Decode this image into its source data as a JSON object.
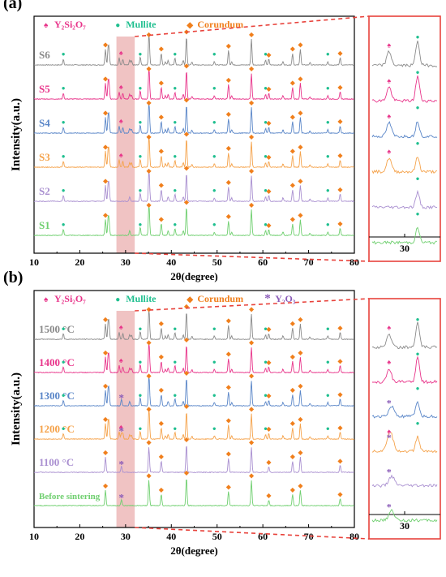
{
  "colors": {
    "y2si2o7": "#e8348a",
    "mullite": "#1fbf8f",
    "corundum": "#f07f1c",
    "y2o3": "#8a5bb8",
    "highlight_band": "#e9aaaa",
    "zoom_box": "#e8433c"
  },
  "chart_data": [
    {
      "type": "line",
      "panel_label": "(a)",
      "xlabel": "2θ(degree)",
      "ylabel": "Intensity(a.u.)",
      "xlim": [
        10,
        80
      ],
      "xticks": [
        "10",
        "20",
        "30",
        "40",
        "50",
        "60",
        "70",
        "80"
      ],
      "highlight_range": [
        28,
        32
      ],
      "legend": [
        {
          "symbol": "♠",
          "label": "Y₂Si₂O₇",
          "key": "y2si2o7"
        },
        {
          "symbol": "●",
          "label": "Mullite",
          "key": "mullite"
        },
        {
          "symbol": "◆",
          "label": "Corundum",
          "key": "corundum"
        }
      ],
      "series": [
        {
          "name": "S6",
          "color": "#8a8a8a",
          "mullite": true,
          "y2si2o7": true,
          "y2o3": false
        },
        {
          "name": "S5",
          "color": "#e8348a",
          "mullite": true,
          "y2si2o7": true,
          "y2o3": false
        },
        {
          "name": "S4",
          "color": "#5a86c8",
          "mullite": true,
          "y2si2o7": true,
          "y2o3": false
        },
        {
          "name": "S3",
          "color": "#f5a24a",
          "mullite": true,
          "y2si2o7": true,
          "y2o3": false
        },
        {
          "name": "S2",
          "color": "#a98fd0",
          "mullite": true,
          "y2si2o7": false,
          "y2o3": false
        },
        {
          "name": "S1",
          "color": "#6fcf6f",
          "mullite": true,
          "y2si2o7": false,
          "y2o3": false
        }
      ],
      "inset_xlabel": "30"
    },
    {
      "type": "line",
      "panel_label": "(b)",
      "xlabel": "2θ(degree)",
      "ylabel": "Intensity(a.u.)",
      "xlim": [
        10,
        80
      ],
      "xticks": [
        "10",
        "20",
        "30",
        "40",
        "50",
        "60",
        "70",
        "80"
      ],
      "highlight_range": [
        28,
        32
      ],
      "legend": [
        {
          "symbol": "♠",
          "label": "Y₂Si₂O₇",
          "key": "y2si2o7"
        },
        {
          "symbol": "●",
          "label": "Mullite",
          "key": "mullite"
        },
        {
          "symbol": "◆",
          "label": "Corundum",
          "key": "corundum"
        },
        {
          "symbol": "*",
          "label": "Y₂O₃",
          "key": "y2o3"
        }
      ],
      "series": [
        {
          "name": "1500 °C",
          "color": "#8a8a8a",
          "mullite": true,
          "y2si2o7": true,
          "y2o3": false
        },
        {
          "name": "1400 °C",
          "color": "#e8348a",
          "mullite": true,
          "y2si2o7": true,
          "y2o3": false
        },
        {
          "name": "1300 °C",
          "color": "#5a86c8",
          "mullite": true,
          "y2si2o7": false,
          "y2o3": true
        },
        {
          "name": "1200 °C",
          "color": "#f5a24a",
          "mullite": true,
          "y2si2o7": true,
          "y2o3": true
        },
        {
          "name": "1100 °C",
          "color": "#a98fd0",
          "mullite": false,
          "y2si2o7": false,
          "y2o3": true
        },
        {
          "name": "Before sintering",
          "color": "#6fcf6f",
          "mullite": false,
          "y2si2o7": false,
          "y2o3": true
        }
      ],
      "inset_xlabel": "30"
    }
  ]
}
